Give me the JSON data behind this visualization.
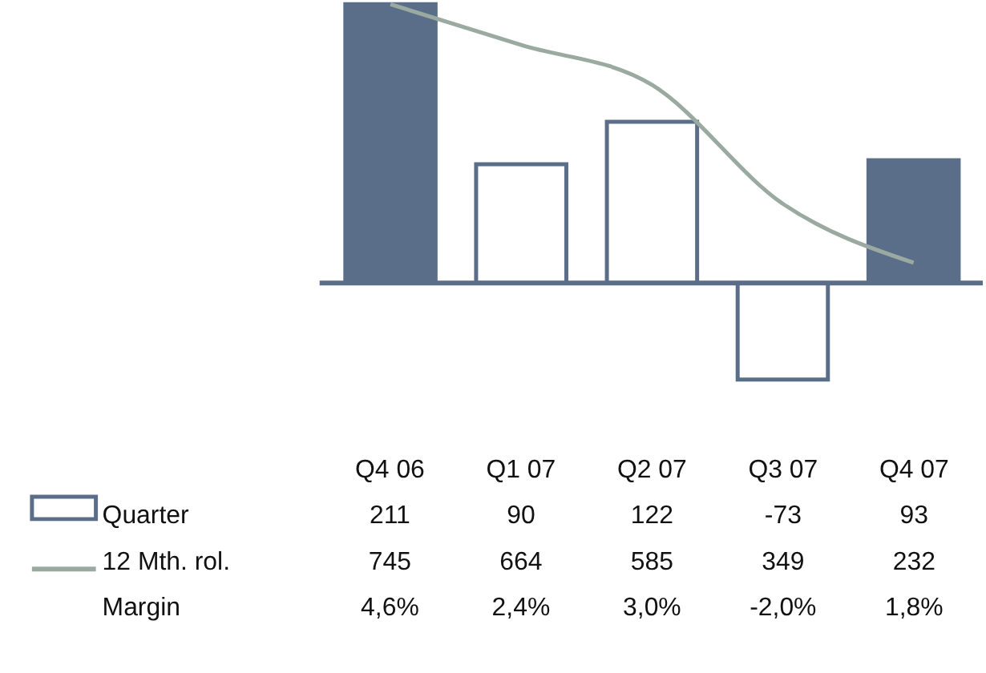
{
  "chart_data": {
    "type": "bar",
    "categories": [
      "Q4 06",
      "Q1 07",
      "Q2 07",
      "Q3 07",
      "Q4 07"
    ],
    "series": [
      {
        "name": "Quarter",
        "color": "#5b6e89",
        "colors": [
          "#5b6e89",
          "#ffffff",
          "#ffffff",
          "#ffffff",
          "#5b6e89"
        ],
        "values": [
          211,
          90,
          122,
          -73,
          93
        ]
      },
      {
        "name": "12 Mth. rol.",
        "type": "line",
        "axis": "y2",
        "color": "#9aaaa0",
        "values": [
          745,
          664,
          585,
          349,
          232
        ]
      }
    ],
    "annotations": [
      "Margin",
      "4,6%",
      "2,4%",
      "3,0%",
      "-2,0%",
      "1,8%"
    ],
    "ref_lines": [
      {
        "axis": "y",
        "value": 0,
        "color": "#5b6e89"
      }
    ],
    "tick_labels": "x",
    "data_labels": true,
    "legend": "bottom left"
  }
}
